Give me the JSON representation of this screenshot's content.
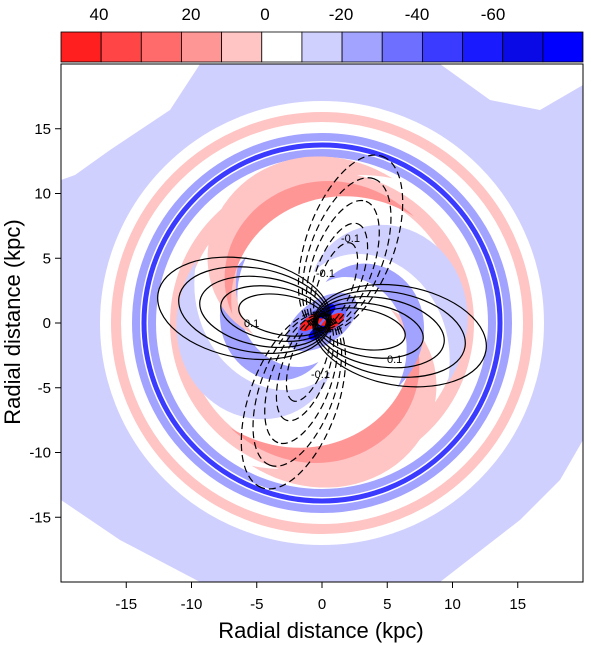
{
  "chart_data": {
    "type": "heatmap",
    "title": "",
    "xlabel": "Radial distance (kpc)",
    "ylabel": "Radial distance (kpc)",
    "xlim": [
      -20,
      20
    ],
    "ylim": [
      -20,
      20
    ],
    "xticks": [
      -15,
      -10,
      -5,
      0,
      5,
      10,
      15
    ],
    "yticks": [
      -15,
      -10,
      -5,
      0,
      5,
      10,
      15
    ],
    "colorbar": {
      "position": "top",
      "tick_labels": [
        "40",
        "20",
        "0",
        "-20",
        "-40",
        "-60"
      ],
      "colors": [
        "#ff1f1f",
        "#ff4545",
        "#ff6b6b",
        "#ff9696",
        "#ffc4c4",
        "#ffffff",
        "#d0d0ff",
        "#a2a2ff",
        "#6f6fff",
        "#3b3bff",
        "#1a1aff",
        "#0a0ae6",
        "#0000ff"
      ]
    },
    "contour_labels": [
      "0.1",
      "0.1",
      "-0.1",
      "-0.1",
      "-0.1"
    ]
  }
}
